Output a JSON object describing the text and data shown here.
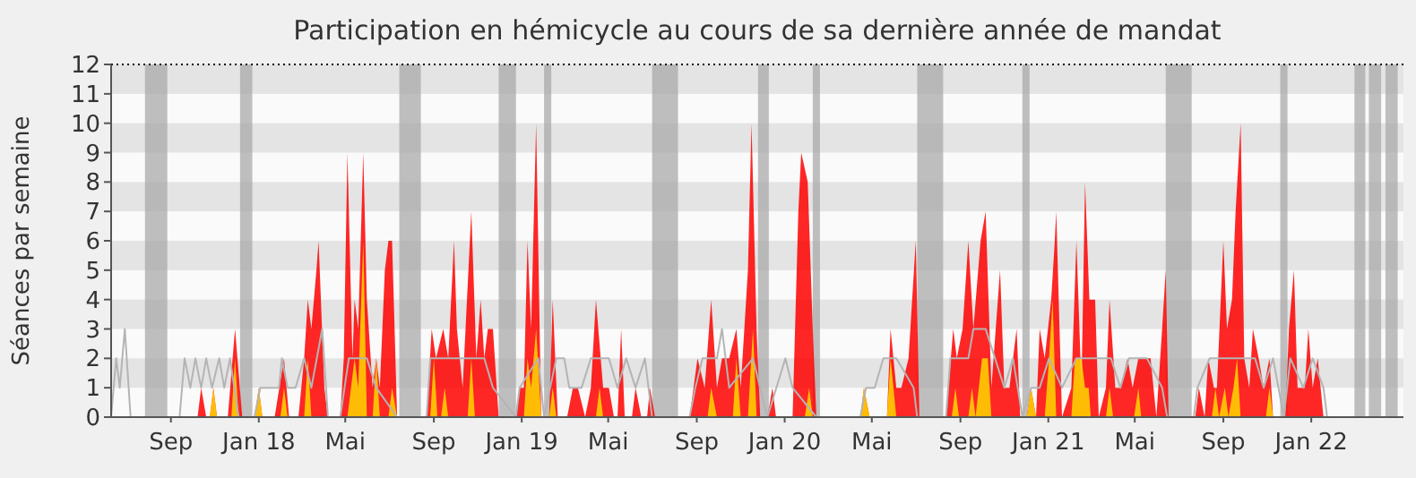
{
  "chart_data": {
    "type": "area",
    "title": "Participation en hémicycle au cours de sa dernière année de mandat",
    "ylabel": "Séances par semaine",
    "xlim": [
      "2017-06-10",
      "2022-05-09"
    ],
    "xticks": [
      {
        "value": "2017-09-01",
        "label": "Sep"
      },
      {
        "value": "2018-01-01",
        "label": "Jan 18"
      },
      {
        "value": "2018-05-01",
        "label": "Mai"
      },
      {
        "value": "2018-09-01",
        "label": "Sep"
      },
      {
        "value": "2019-01-01",
        "label": "Jan 19"
      },
      {
        "value": "2019-05-01",
        "label": "Mai"
      },
      {
        "value": "2019-09-01",
        "label": "Sep"
      },
      {
        "value": "2020-01-01",
        "label": "Jan 20"
      },
      {
        "value": "2020-05-01",
        "label": "Mai"
      },
      {
        "value": "2020-09-01",
        "label": "Sep"
      },
      {
        "value": "2021-01-01",
        "label": "Jan 21"
      },
      {
        "value": "2021-05-01",
        "label": "Mai"
      },
      {
        "value": "2021-09-01",
        "label": "Sep"
      },
      {
        "value": "2022-01-01",
        "label": "Jan 22"
      }
    ],
    "ylim": [
      0,
      12
    ],
    "yticks": [
      0,
      1,
      2,
      3,
      4,
      5,
      6,
      7,
      8,
      9,
      10,
      11,
      12
    ],
    "bands": [
      {
        "axis": "y",
        "from": 1,
        "to": 2,
        "color": "#e4e4e4"
      },
      {
        "axis": "y",
        "from": 3,
        "to": 4,
        "color": "#e4e4e4"
      },
      {
        "axis": "y",
        "from": 5,
        "to": 6,
        "color": "#e4e4e4"
      },
      {
        "axis": "y",
        "from": 7,
        "to": 8,
        "color": "#e4e4e4"
      },
      {
        "axis": "y",
        "from": 9,
        "to": 10,
        "color": "#e4e4e4"
      },
      {
        "axis": "y",
        "from": 11,
        "to": 12,
        "color": "#e4e4e4"
      },
      {
        "axis": "x",
        "from": "2017-07-27",
        "to": "2017-08-27",
        "color": "#aaaaaa"
      },
      {
        "axis": "x",
        "from": "2017-12-06",
        "to": "2017-12-23",
        "color": "#aaaaaa"
      },
      {
        "axis": "x",
        "from": "2018-07-15",
        "to": "2018-08-14",
        "color": "#aaaaaa"
      },
      {
        "axis": "x",
        "from": "2018-11-30",
        "to": "2018-12-24",
        "color": "#aaaaaa"
      },
      {
        "axis": "x",
        "from": "2019-02-01",
        "to": "2019-02-11",
        "color": "#aaaaaa"
      },
      {
        "axis": "x",
        "from": "2019-07-01",
        "to": "2019-08-06",
        "color": "#aaaaaa"
      },
      {
        "axis": "x",
        "from": "2019-11-25",
        "to": "2019-12-10",
        "color": "#aaaaaa"
      },
      {
        "axis": "x",
        "from": "2020-02-09",
        "to": "2020-02-19",
        "color": "#aaaaaa"
      },
      {
        "axis": "x",
        "from": "2020-07-03",
        "to": "2020-08-08",
        "color": "#aaaaaa"
      },
      {
        "axis": "x",
        "from": "2020-11-26",
        "to": "2020-12-06",
        "color": "#aaaaaa"
      },
      {
        "axis": "x",
        "from": "2021-06-13",
        "to": "2021-07-19",
        "color": "#aaaaaa"
      },
      {
        "axis": "x",
        "from": "2021-11-19",
        "to": "2021-11-29",
        "color": "#aaaaaa"
      },
      {
        "axis": "x",
        "from": "2022-03-02",
        "to": "2022-03-17",
        "color": "#aaaaaa"
      },
      {
        "axis": "x",
        "from": "2022-03-22",
        "to": "2022-04-08",
        "color": "#aaaaaa"
      },
      {
        "axis": "x",
        "from": "2022-04-14",
        "to": "2022-05-01",
        "color": "#aaaaaa"
      }
    ],
    "series": [
      {
        "type": "line",
        "color": "#b4b4b4",
        "x": [
          "2017-06-10",
          "2017-06-17",
          "2017-06-22",
          "2017-06-29",
          "2017-07-07",
          "2017-09-13",
          "2017-09-20",
          "2017-09-28",
          "2017-10-05",
          "2017-10-13",
          "2017-10-20",
          "2017-10-28",
          "2017-11-07",
          "2017-11-14",
          "2017-11-22",
          "2017-12-04",
          "2017-12-26",
          "2018-01-03",
          "2018-01-29",
          "2018-02-02",
          "2018-02-10",
          "2018-02-21",
          "2018-03-05",
          "2018-03-15",
          "2018-03-30",
          "2018-04-07",
          "2018-04-24",
          "2018-05-06",
          "2018-05-31",
          "2018-06-13",
          "2018-07-12",
          "2018-08-22",
          "2018-08-27",
          "2018-11-10",
          "2018-11-22",
          "2018-12-24",
          "2018-12-29",
          "2019-01-24",
          "2019-02-01",
          "2019-02-18",
          "2019-03-01",
          "2019-03-08",
          "2019-03-25",
          "2019-04-07",
          "2019-05-02",
          "2019-05-14",
          "2019-05-26",
          "2019-06-08",
          "2019-06-21",
          "2019-07-01",
          "2019-08-22",
          "2019-08-30",
          "2019-09-09",
          "2019-09-29",
          "2019-10-06",
          "2019-10-16",
          "2019-11-18",
          "2019-12-08",
          "2020-01-02",
          "2020-01-12",
          "2020-02-14",
          "2020-04-15",
          "2020-04-23",
          "2020-05-05",
          "2020-05-17",
          "2020-06-04",
          "2020-06-28",
          "2020-07-03",
          "2020-08-12",
          "2020-08-18",
          "2020-09-12",
          "2020-09-19",
          "2020-10-06",
          "2020-11-01",
          "2020-11-13",
          "2020-11-26",
          "2020-12-08",
          "2020-12-20",
          "2021-01-02",
          "2021-01-20",
          "2021-02-09",
          "2021-03-16",
          "2021-03-29",
          "2021-04-11",
          "2021-04-23",
          "2021-05-18",
          "2021-06-08",
          "2021-06-15",
          "2021-07-22",
          "2021-07-27",
          "2021-08-13",
          "2021-10-15",
          "2021-10-27",
          "2021-11-09",
          "2021-11-24",
          "2021-12-03",
          "2021-12-21",
          "2022-01-03",
          "2022-01-18",
          "2022-01-23",
          "2022-05-01"
        ],
        "values": [
          0,
          2,
          1,
          3,
          0,
          0,
          2,
          1,
          2,
          1,
          2,
          1,
          2,
          1,
          2,
          0,
          0,
          1,
          1,
          2,
          1,
          1,
          2,
          1,
          3,
          0,
          0,
          2,
          2,
          1,
          0,
          0,
          2,
          2,
          1,
          0,
          1,
          2,
          0,
          2,
          2,
          1,
          1,
          2,
          2,
          1,
          2,
          1,
          2,
          0,
          0,
          1,
          2,
          2,
          3,
          1,
          2,
          0,
          2,
          1,
          0,
          0,
          1,
          1,
          2,
          2,
          1,
          0,
          0,
          2,
          2,
          3,
          3,
          1,
          2,
          0,
          1,
          1,
          2,
          1,
          2,
          2,
          2,
          1,
          2,
          2,
          1,
          0,
          0,
          1,
          2,
          2,
          1,
          2,
          0,
          2,
          1,
          2,
          1,
          0,
          0
        ]
      },
      {
        "type": "area",
        "color": "#ff0000",
        "x": [
          "2017-06-10",
          "2017-10-08",
          "2017-10-13",
          "2017-10-20",
          "2017-10-25",
          "2017-10-30",
          "2017-11-04",
          "2017-11-19",
          "2017-11-29",
          "2017-12-09",
          "2017-12-26",
          "2018-01-01",
          "2018-01-06",
          "2018-01-23",
          "2018-02-05",
          "2018-02-12",
          "2018-02-25",
          "2018-03-01",
          "2018-03-05",
          "2018-03-10",
          "2018-03-15",
          "2018-03-22",
          "2018-03-25",
          "2018-04-02",
          "2018-04-07",
          "2018-04-24",
          "2018-04-29",
          "2018-05-04",
          "2018-05-11",
          "2018-05-14",
          "2018-05-19",
          "2018-05-26",
          "2018-05-31",
          "2018-06-08",
          "2018-06-13",
          "2018-06-18",
          "2018-06-25",
          "2018-06-30",
          "2018-07-05",
          "2018-07-12",
          "2018-08-22",
          "2018-08-29",
          "2018-09-04",
          "2018-09-14",
          "2018-09-21",
          "2018-09-29",
          "2018-10-03",
          "2018-10-11",
          "2018-10-23",
          "2018-10-30",
          "2018-11-05",
          "2018-11-10",
          "2018-11-15",
          "2018-11-22",
          "2018-11-30",
          "2018-12-24",
          "2018-12-29",
          "2019-01-04",
          "2019-01-09",
          "2019-01-14",
          "2019-01-21",
          "2019-01-28",
          "2019-02-08",
          "2019-02-13",
          "2019-02-20",
          "2019-03-05",
          "2019-03-13",
          "2019-03-20",
          "2019-03-30",
          "2019-04-07",
          "2019-04-14",
          "2019-04-24",
          "2019-05-02",
          "2019-05-09",
          "2019-05-14",
          "2019-05-19",
          "2019-05-24",
          "2019-06-03",
          "2019-06-08",
          "2019-06-16",
          "2019-06-24",
          "2019-06-28",
          "2019-07-05",
          "2019-08-22",
          "2019-09-02",
          "2019-09-12",
          "2019-09-21",
          "2019-09-29",
          "2019-10-06",
          "2019-10-16",
          "2019-10-26",
          "2019-11-01",
          "2019-11-11",
          "2019-11-16",
          "2019-11-23",
          "2019-11-28",
          "2019-12-08",
          "2019-12-15",
          "2019-12-20",
          "2020-01-12",
          "2020-01-20",
          "2020-01-24",
          "2020-02-02",
          "2020-02-09",
          "2020-02-14",
          "2020-04-15",
          "2020-04-20",
          "2020-04-28",
          "2020-05-22",
          "2020-05-27",
          "2020-06-04",
          "2020-06-11",
          "2020-06-21",
          "2020-07-01",
          "2020-07-06",
          "2020-08-12",
          "2020-08-22",
          "2020-08-27",
          "2020-09-04",
          "2020-09-12",
          "2020-09-19",
          "2020-09-29",
          "2020-10-06",
          "2020-10-14",
          "2020-10-26",
          "2020-11-01",
          "2020-11-08",
          "2020-11-18",
          "2020-11-23",
          "2020-12-02",
          "2020-12-08",
          "2020-12-15",
          "2020-12-20",
          "2020-12-27",
          "2021-01-05",
          "2021-01-10",
          "2021-01-12",
          "2021-01-20",
          "2021-02-02",
          "2021-02-09",
          "2021-02-16",
          "2021-02-21",
          "2021-02-27",
          "2021-03-07",
          "2021-03-12",
          "2021-03-22",
          "2021-03-27",
          "2021-04-04",
          "2021-04-11",
          "2021-04-21",
          "2021-04-28",
          "2021-05-06",
          "2021-05-18",
          "2021-05-23",
          "2021-05-31",
          "2021-06-08",
          "2021-06-13",
          "2021-06-17",
          "2021-07-24",
          "2021-07-29",
          "2021-08-06",
          "2021-08-11",
          "2021-08-19",
          "2021-08-23",
          "2021-09-01",
          "2021-09-06",
          "2021-09-13",
          "2021-09-18",
          "2021-09-25",
          "2021-09-30",
          "2021-10-07",
          "2021-10-12",
          "2021-10-20",
          "2021-10-27",
          "2021-11-04",
          "2021-11-09",
          "2021-11-26",
          "2021-12-01",
          "2021-12-08",
          "2021-12-13",
          "2021-12-23",
          "2021-12-28",
          "2022-01-03",
          "2022-01-10",
          "2022-01-18",
          "2022-05-01"
        ],
        "values": [
          0,
          0,
          1,
          0,
          0,
          1,
          0,
          0,
          3,
          0,
          0,
          1,
          0,
          0,
          2,
          0,
          0,
          1,
          2,
          4,
          3,
          5,
          6,
          1,
          0,
          0,
          2,
          9,
          2,
          4,
          3,
          9,
          4,
          1,
          2,
          1,
          5,
          6,
          6,
          0,
          0,
          3,
          2,
          3,
          2,
          6,
          3,
          1,
          7,
          2,
          4,
          2,
          3,
          3,
          0,
          0,
          1,
          1,
          6,
          3,
          10,
          0,
          0,
          4,
          0,
          0,
          1,
          1,
          0,
          1,
          4,
          1,
          1,
          0,
          0,
          3,
          0,
          0,
          1,
          0,
          0,
          1,
          0,
          0,
          2,
          1,
          4,
          1,
          2,
          2,
          3,
          1,
          5,
          10,
          3,
          0,
          0,
          1,
          0,
          0,
          7,
          9,
          8,
          3,
          0,
          0,
          1,
          0,
          0,
          3,
          1,
          1,
          2,
          6,
          0,
          0,
          3,
          2,
          3,
          6,
          3,
          6,
          7,
          1,
          5,
          1,
          1,
          3,
          0,
          0,
          1,
          0,
          3,
          2,
          4,
          6,
          7,
          0,
          1,
          6,
          1,
          8,
          4,
          4,
          0,
          1,
          4,
          1,
          1,
          2,
          1,
          2,
          2,
          2,
          0,
          3,
          5,
          0,
          0,
          1,
          0,
          2,
          1,
          1,
          6,
          3,
          4,
          7,
          10,
          2,
          1,
          3,
          2,
          1,
          2,
          0,
          0,
          3,
          5,
          1,
          1,
          3,
          1,
          2,
          0,
          0
        ]
      },
      {
        "type": "area",
        "color": "#ffd700",
        "x": [
          "2017-06-10",
          "2017-10-25",
          "2017-10-30",
          "2017-11-04",
          "2017-11-24",
          "2017-11-29",
          "2017-12-04",
          "2017-12-26",
          "2018-01-01",
          "2018-01-06",
          "2018-01-31",
          "2018-02-05",
          "2018-02-10",
          "2018-03-05",
          "2018-03-10",
          "2018-03-15",
          "2018-05-04",
          "2018-05-09",
          "2018-05-14",
          "2018-05-19",
          "2018-05-26",
          "2018-05-31",
          "2018-06-08",
          "2018-06-13",
          "2018-06-18",
          "2018-06-30",
          "2018-07-05",
          "2018-07-12",
          "2018-08-27",
          "2018-09-01",
          "2018-09-06",
          "2018-09-11",
          "2018-09-16",
          "2018-09-21",
          "2018-10-18",
          "2018-10-23",
          "2018-10-28",
          "2019-01-04",
          "2019-01-09",
          "2019-01-14",
          "2019-01-21",
          "2019-01-28",
          "2019-02-08",
          "2019-02-13",
          "2019-02-18",
          "2019-04-14",
          "2019-04-19",
          "2019-04-24",
          "2019-09-16",
          "2019-09-21",
          "2019-09-29",
          "2019-10-21",
          "2019-10-26",
          "2019-11-01",
          "2019-11-11",
          "2019-11-18",
          "2019-11-23",
          "2020-01-29",
          "2020-02-04",
          "2020-02-09",
          "2020-04-15",
          "2020-04-20",
          "2020-04-28",
          "2020-05-22",
          "2020-05-27",
          "2020-06-04",
          "2020-08-20",
          "2020-08-25",
          "2020-08-30",
          "2020-09-12",
          "2020-09-17",
          "2020-09-22",
          "2020-10-01",
          "2020-10-09",
          "2020-10-14",
          "2020-12-02",
          "2020-12-08",
          "2020-12-15",
          "2020-12-27",
          "2021-01-02",
          "2021-01-07",
          "2021-01-12",
          "2021-02-02",
          "2021-02-07",
          "2021-02-16",
          "2021-02-21",
          "2021-02-26",
          "2021-03-01",
          "2021-03-22",
          "2021-03-27",
          "2021-04-01",
          "2021-04-30",
          "2021-05-06",
          "2021-05-10",
          "2021-08-16",
          "2021-08-21",
          "2021-08-26",
          "2021-09-03",
          "2021-09-08",
          "2021-09-15",
          "2021-09-20",
          "2021-09-25",
          "2021-10-30",
          "2021-11-04",
          "2021-11-09",
          "2022-05-01"
        ],
        "values": [
          0,
          0,
          1,
          0,
          0,
          2,
          0,
          0,
          1,
          0,
          0,
          1,
          0,
          0,
          2,
          0,
          0,
          1,
          2,
          1,
          6,
          0,
          0,
          2,
          0,
          0,
          1,
          0,
          0,
          2,
          0,
          0,
          1,
          0,
          0,
          2,
          0,
          0,
          2,
          1,
          3,
          0,
          0,
          1,
          0,
          0,
          1,
          0,
          0,
          1,
          0,
          0,
          2,
          0,
          0,
          3,
          0,
          0,
          1,
          0,
          0,
          1,
          0,
          0,
          2,
          0,
          0,
          1,
          0,
          0,
          1,
          0,
          2,
          2,
          0,
          0,
          1,
          0,
          0,
          2,
          4,
          0,
          0,
          2,
          2,
          1,
          1,
          0,
          0,
          1,
          0,
          0,
          1,
          0,
          0,
          1,
          0,
          1,
          0,
          1,
          2,
          0,
          0,
          1,
          0,
          0
        ]
      }
    ]
  }
}
